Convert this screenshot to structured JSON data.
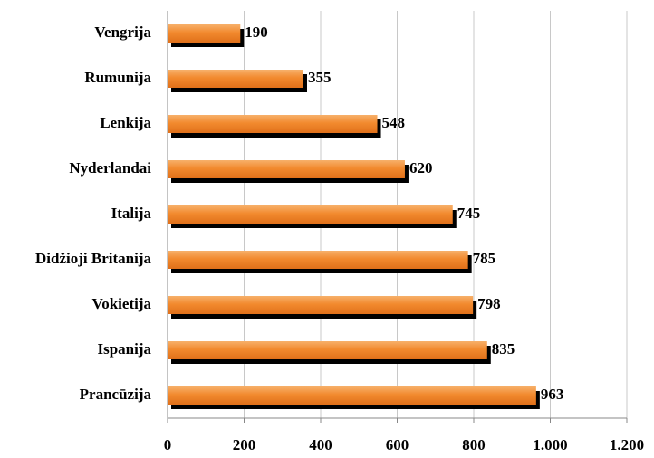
{
  "chart_data": {
    "type": "bar",
    "orientation": "horizontal",
    "categories": [
      "Vengrija",
      "Rumunija",
      "Lenkija",
      "Nyderlandai",
      "Italija",
      "Didžioji Britanija",
      "Vokietija",
      "Ispanija",
      "Prancūzija"
    ],
    "values": [
      190,
      355,
      548,
      620,
      745,
      785,
      798,
      835,
      963
    ],
    "color": "#f28a2e",
    "shadow_color": "#000000",
    "xlim": [
      0,
      1200
    ],
    "xticks": [
      0,
      200,
      400,
      600,
      800,
      {
        "value": 1000,
        "label": "1.000"
      },
      {
        "value": 1200,
        "label": "1.200"
      }
    ],
    "grid": true
  }
}
